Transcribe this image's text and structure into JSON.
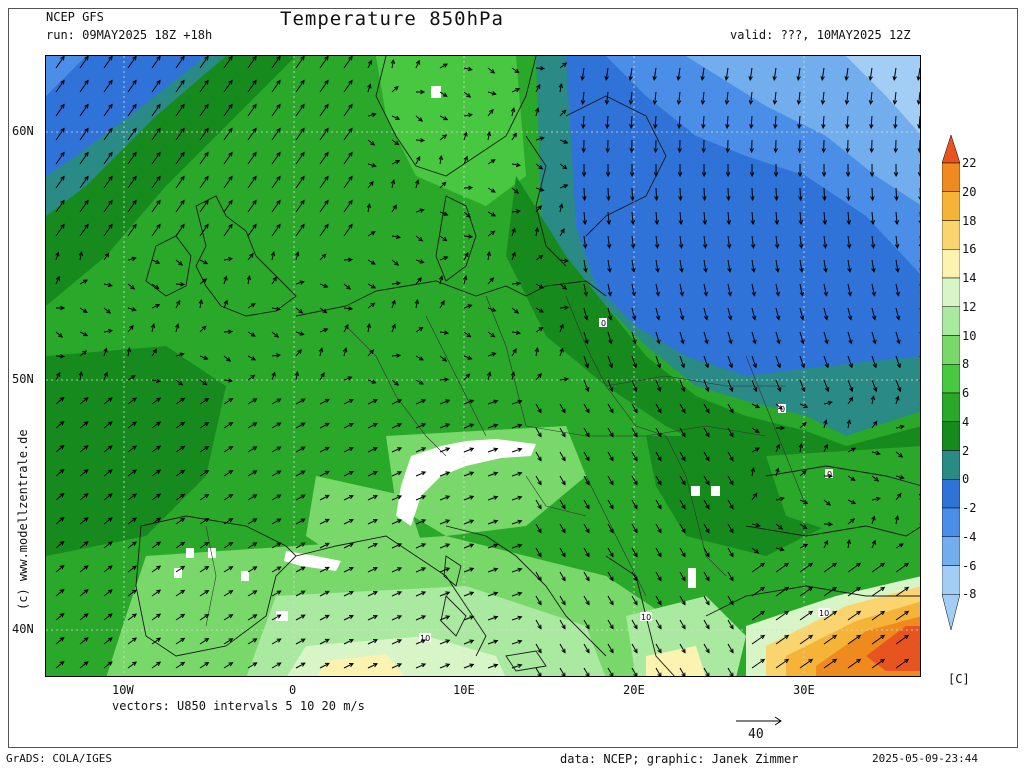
{
  "header": {
    "model": "NCEP GFS",
    "run": "run: 09MAY2025 18Z +18h",
    "title": "Temperature 850hPa",
    "valid": "valid: ???, 10MAY2025 12Z"
  },
  "axes": {
    "lat_labels": [
      "60N",
      "50N",
      "40N"
    ],
    "lon_labels": [
      "10W",
      "0",
      "10E",
      "20E",
      "30E"
    ]
  },
  "watermark": "(c) www.modellzentrale.de",
  "vectors_note": "vectors: U850 intervals 5 10 20 m/s",
  "reference_vector_label": "40",
  "footer": {
    "left": "GrADS: COLA/IGES",
    "credits": "data: NCEP; graphic: Janek Zimmer",
    "timestamp": "2025-05-09-23:44"
  },
  "colorbar": {
    "unit": "[C]",
    "levels": [
      "22",
      "20",
      "18",
      "16",
      "14",
      "12",
      "10",
      "8",
      "6",
      "4",
      "2",
      "0",
      "-2",
      "-4",
      "-6",
      "-8"
    ],
    "colors": [
      "#e8541f",
      "#ef8a1f",
      "#f5b437",
      "#f9d46f",
      "#fcf3b0",
      "#d8f5c8",
      "#a9e9a0",
      "#78d96a",
      "#48c840",
      "#2aa82a",
      "#178a1e",
      "#2a8a86",
      "#2f73d8",
      "#4a8ee8",
      "#72aeee",
      "#a2cdf5"
    ]
  },
  "isotherm_labels": [
    "0",
    "0",
    "0",
    "10",
    "10",
    "10",
    "10"
  ]
}
